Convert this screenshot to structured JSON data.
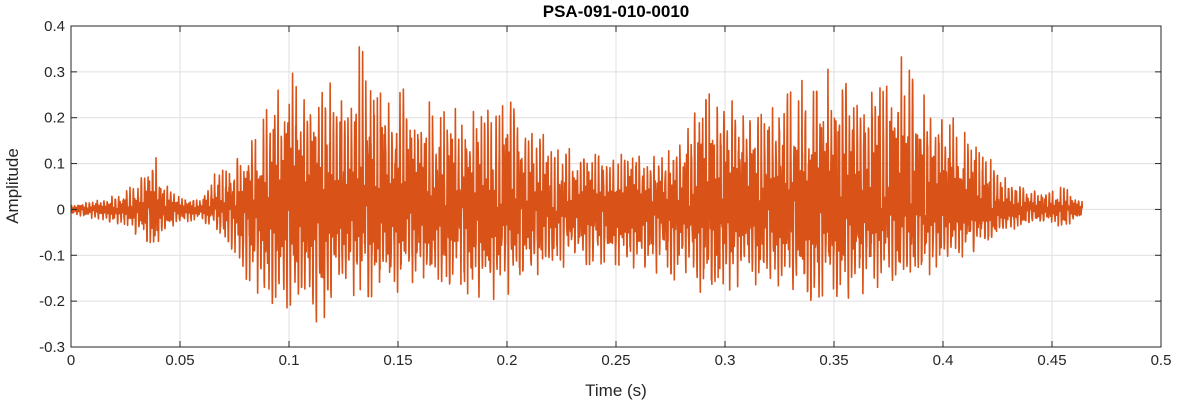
{
  "chart_data": {
    "type": "line",
    "title": "PSA-091-010-0010",
    "xlabel": "Time (s)",
    "ylabel": "Amplitude",
    "xlim": [
      0,
      0.5
    ],
    "ylim": [
      -0.3,
      0.4
    ],
    "xticks": [
      "0",
      "0.05",
      "0.1",
      "0.15",
      "0.2",
      "0.25",
      "0.3",
      "0.35",
      "0.4",
      "0.45",
      "0.5"
    ],
    "yticks": [
      "-0.3",
      "-0.2",
      "-0.1",
      "0",
      "0.1",
      "0.2",
      "0.3",
      "0.4"
    ],
    "grid": true,
    "series": [
      {
        "color": "#d95319",
        "duration": 0.464,
        "envelope": {
          "t": [
            0,
            0.01,
            0.02,
            0.025,
            0.035,
            0.038,
            0.042,
            0.05,
            0.06,
            0.065,
            0.07,
            0.075,
            0.08,
            0.09,
            0.1,
            0.105,
            0.11,
            0.12,
            0.13,
            0.135,
            0.14,
            0.15,
            0.16,
            0.17,
            0.18,
            0.19,
            0.2,
            0.21,
            0.22,
            0.23,
            0.24,
            0.25,
            0.26,
            0.27,
            0.28,
            0.285,
            0.29,
            0.3,
            0.31,
            0.32,
            0.33,
            0.34,
            0.35,
            0.36,
            0.37,
            0.38,
            0.39,
            0.4,
            0.41,
            0.42,
            0.43,
            0.44,
            0.45,
            0.455,
            0.464
          ],
          "max": [
            0.01,
            0.02,
            0.03,
            0.04,
            0.08,
            0.13,
            0.06,
            0.03,
            0.02,
            0.08,
            0.09,
            0.1,
            0.14,
            0.22,
            0.3,
            0.29,
            0.28,
            0.3,
            0.35,
            0.36,
            0.3,
            0.27,
            0.24,
            0.23,
            0.22,
            0.21,
            0.26,
            0.19,
            0.15,
            0.13,
            0.12,
            0.12,
            0.12,
            0.13,
            0.15,
            0.2,
            0.26,
            0.24,
            0.23,
            0.24,
            0.26,
            0.3,
            0.31,
            0.29,
            0.28,
            0.34,
            0.26,
            0.22,
            0.18,
            0.13,
            0.06,
            0.04,
            0.04,
            0.05,
            0.02
          ],
          "min": [
            -0.01,
            -0.02,
            -0.03,
            -0.04,
            -0.07,
            -0.1,
            -0.05,
            -0.03,
            -0.02,
            -0.05,
            -0.08,
            -0.1,
            -0.16,
            -0.2,
            -0.22,
            -0.24,
            -0.25,
            -0.23,
            -0.2,
            -0.19,
            -0.19,
            -0.18,
            -0.17,
            -0.16,
            -0.18,
            -0.2,
            -0.19,
            -0.16,
            -0.14,
            -0.12,
            -0.12,
            -0.12,
            -0.13,
            -0.14,
            -0.16,
            -0.19,
            -0.2,
            -0.18,
            -0.16,
            -0.17,
            -0.18,
            -0.2,
            -0.2,
            -0.19,
            -0.17,
            -0.17,
            -0.15,
            -0.13,
            -0.1,
            -0.08,
            -0.05,
            -0.03,
            -0.03,
            -0.04,
            -0.02
          ]
        }
      }
    ]
  }
}
